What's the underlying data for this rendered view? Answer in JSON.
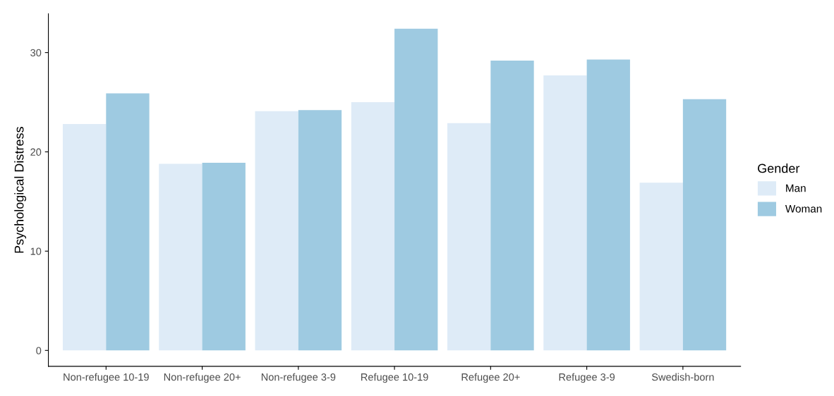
{
  "chart_data": {
    "type": "bar",
    "ylabel": "Psychological Distress",
    "legend_title": "Gender",
    "legend": "right",
    "categories": [
      "Non-refugee 10-19",
      "Non-refugee 20+",
      "Non-refugee 3-9",
      "Refugee 10-19",
      "Refugee 20+",
      "Refugee 3-9",
      "Swedish-born"
    ],
    "series": [
      {
        "name": "Man",
        "color": "#deebf7",
        "values": [
          22.8,
          18.8,
          24.1,
          25.0,
          22.9,
          27.7,
          16.9
        ]
      },
      {
        "name": "Woman",
        "color": "#9ecae1",
        "values": [
          25.9,
          18.9,
          24.2,
          32.4,
          29.2,
          29.3,
          25.3
        ]
      }
    ],
    "ylim": [
      -1.6,
      33.9
    ],
    "yticks": [
      0,
      10,
      20,
      30
    ],
    "grid": false
  }
}
